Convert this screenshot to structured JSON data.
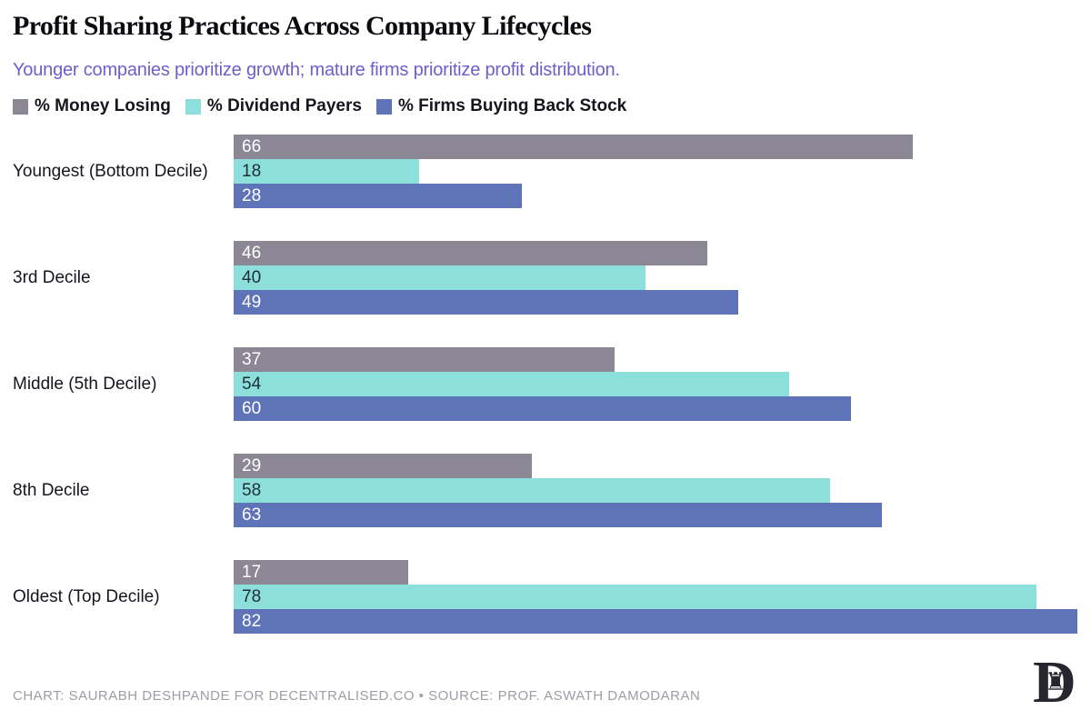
{
  "title": "Profit Sharing Practices Across Company Lifecycles",
  "subtitle": "Younger companies prioritize growth; mature firms prioritize profit distribution.",
  "legend": [
    {
      "label": "% Money Losing",
      "color": "#8c8795"
    },
    {
      "label": "% Dividend Payers",
      "color": "#8ddfdc"
    },
    {
      "label": "% Firms Buying Back Stock",
      "color": "#5f73b8"
    }
  ],
  "chart_data": {
    "type": "bar",
    "orientation": "horizontal",
    "title": "Profit Sharing Practices Across Company Lifecycles",
    "subtitle": "Younger companies prioritize growth; mature firms prioritize profit distribution.",
    "categories": [
      "Youngest (Bottom Decile)",
      "3rd Decile",
      "Middle (5th Decile)",
      "8th Decile",
      "Oldest (Top Decile)"
    ],
    "series": [
      {
        "name": "% Money Losing",
        "color": "#8c8795",
        "label_color": "#ffffff",
        "values": [
          66,
          46,
          37,
          29,
          17
        ]
      },
      {
        "name": "% Dividend Payers",
        "color": "#8ddfdc",
        "label_color": "#1f2e38",
        "values": [
          18,
          40,
          54,
          58,
          78
        ]
      },
      {
        "name": "% Firms Buying Back Stock",
        "color": "#5f73b8",
        "label_color": "#ffffff",
        "values": [
          28,
          49,
          60,
          63,
          82
        ]
      }
    ],
    "xlim": [
      0,
      82
    ],
    "value_labels": "inside-left",
    "grid": false,
    "legend_position": "top",
    "axis_ticks_visible": false
  },
  "footer": {
    "credit": "CHART: SAURABH DESHPANDE FOR DECENTRALISED.CO • SOURCE: PROF. ASWATH DAMODARAN"
  },
  "logo": {
    "letter": "D",
    "icon": "rook-icon"
  },
  "colors": {
    "background": "#ffffff",
    "title_text": "#0b0b10",
    "subtitle_text": "#6e5ec9",
    "body_text": "#15151e",
    "footer_text": "#9e9da4",
    "logo": "#26262e"
  }
}
